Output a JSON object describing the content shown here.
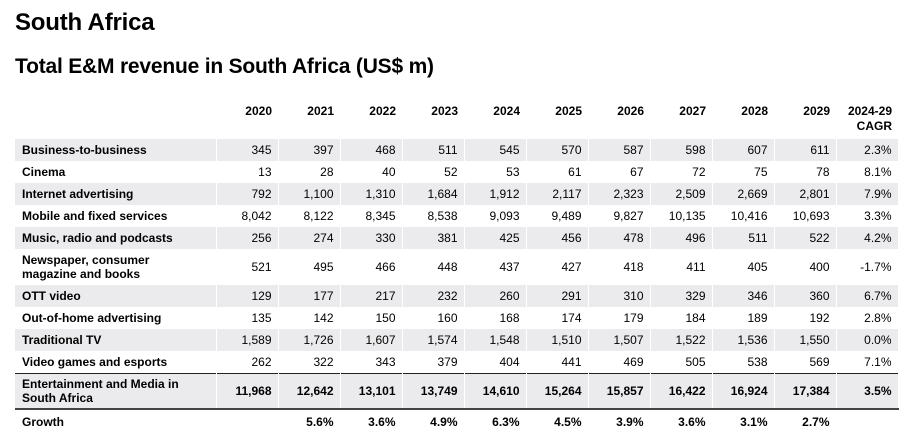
{
  "page": {
    "title": "South Africa",
    "subtitle": "Total E&M revenue in South Africa (US$ m)"
  },
  "table": {
    "columns": [
      "2020",
      "2021",
      "2022",
      "2023",
      "2024",
      "2025",
      "2026",
      "2027",
      "2028",
      "2029",
      "2024-29 CAGR"
    ],
    "cagr_header_line1": "2024-29",
    "cagr_header_line2": "CAGR",
    "rows": [
      {
        "label": "Business-to-business",
        "values": [
          "345",
          "397",
          "468",
          "511",
          "545",
          "570",
          "587",
          "598",
          "607",
          "611",
          "2.3%"
        ]
      },
      {
        "label": "Cinema",
        "values": [
          "13",
          "28",
          "40",
          "52",
          "53",
          "61",
          "67",
          "72",
          "75",
          "78",
          "8.1%"
        ]
      },
      {
        "label": "Internet advertising",
        "values": [
          "792",
          "1,100",
          "1,310",
          "1,684",
          "1,912",
          "2,117",
          "2,323",
          "2,509",
          "2,669",
          "2,801",
          "7.9%"
        ]
      },
      {
        "label": "Mobile and fixed services",
        "values": [
          "8,042",
          "8,122",
          "8,345",
          "8,538",
          "9,093",
          "9,489",
          "9,827",
          "10,135",
          "10,416",
          "10,693",
          "3.3%"
        ]
      },
      {
        "label": "Music, radio and podcasts",
        "values": [
          "256",
          "274",
          "330",
          "381",
          "425",
          "456",
          "478",
          "496",
          "511",
          "522",
          "4.2%"
        ]
      },
      {
        "label": "Newspaper, consumer magazine and books",
        "label_line1": "Newspaper, consumer",
        "label_line2": "magazine and books",
        "values": [
          "521",
          "495",
          "466",
          "448",
          "437",
          "427",
          "418",
          "411",
          "405",
          "400",
          "-1.7%"
        ]
      },
      {
        "label": "OTT video",
        "values": [
          "129",
          "177",
          "217",
          "232",
          "260",
          "291",
          "310",
          "329",
          "346",
          "360",
          "6.7%"
        ]
      },
      {
        "label": "Out-of-home advertising",
        "values": [
          "135",
          "142",
          "150",
          "160",
          "168",
          "174",
          "179",
          "184",
          "189",
          "192",
          "2.8%"
        ]
      },
      {
        "label": "Traditional TV",
        "values": [
          "1,589",
          "1,726",
          "1,607",
          "1,574",
          "1,548",
          "1,510",
          "1,507",
          "1,522",
          "1,536",
          "1,550",
          "0.0%"
        ]
      },
      {
        "label": "Video games and esports",
        "values": [
          "262",
          "322",
          "343",
          "379",
          "404",
          "441",
          "469",
          "505",
          "538",
          "569",
          "7.1%"
        ]
      }
    ],
    "total": {
      "label": "Entertainment and Media in South Africa",
      "label_line1": "Entertainment and Media in",
      "label_line2": "South Africa",
      "values": [
        "11,968",
        "12,642",
        "13,101",
        "13,749",
        "14,610",
        "15,264",
        "15,857",
        "16,422",
        "16,924",
        "17,384",
        "3.5%"
      ]
    },
    "growth": {
      "label": "Growth",
      "values": [
        "",
        "5.6%",
        "3.6%",
        "4.9%",
        "6.3%",
        "4.5%",
        "3.9%",
        "3.6%",
        "3.1%",
        "2.7%",
        ""
      ]
    }
  },
  "colors": {
    "stripe": "#ebebed",
    "rule": "#222222"
  }
}
